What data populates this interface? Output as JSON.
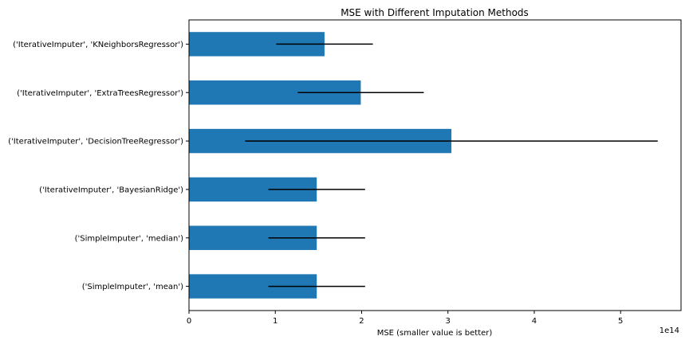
{
  "chart_data": {
    "type": "bar",
    "orientation": "horizontal",
    "title": "MSE with Different Imputation Methods",
    "xlabel": "MSE (smaller value is better)",
    "ylabel": "",
    "x_offset_label": "1e14",
    "xlim": [
      0,
      5.7
    ],
    "x_ticks": [
      0,
      1,
      2,
      3,
      4,
      5
    ],
    "x_tick_labels": [
      "0",
      "1",
      "2",
      "3",
      "4",
      "5"
    ],
    "grid": false,
    "legend": "none",
    "bar_color": "#1f77b4",
    "error_color": "#000000",
    "categories": [
      "('SimpleImputer', 'mean')",
      "('SimpleImputer', 'median')",
      "('IterativeImputer', 'BayesianRidge')",
      "('IterativeImputer', 'DecisionTreeRegressor')",
      "('IterativeImputer', 'ExtraTreesRegressor')",
      "('IterativeImputer', 'KNeighborsRegressor')"
    ],
    "values": [
      1.48,
      1.48,
      1.48,
      3.04,
      1.99,
      1.57
    ],
    "errors": [
      0.56,
      0.56,
      0.56,
      2.39,
      0.73,
      0.56
    ]
  }
}
